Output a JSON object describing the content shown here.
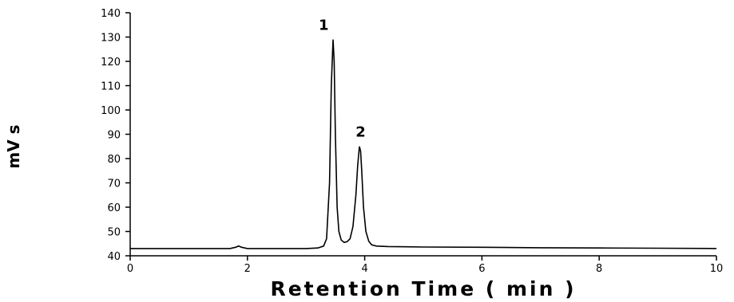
{
  "chart_data": {
    "type": "line",
    "xlabel": "Retention Time ( min )",
    "ylabel": "mV s",
    "xlim": [
      0,
      10
    ],
    "ylim": [
      40,
      140
    ],
    "xticks": [
      0,
      2,
      4,
      6,
      8,
      10
    ],
    "yticks": [
      40,
      50,
      60,
      70,
      80,
      90,
      100,
      110,
      120,
      130,
      140
    ],
    "grid": false,
    "series": [
      {
        "x": [
          0,
          0.5,
          1.0,
          1.5,
          1.7,
          1.8,
          1.85,
          1.9,
          2.0,
          2.5,
          3.0,
          3.2,
          3.3,
          3.35,
          3.4,
          3.43,
          3.46,
          3.48,
          3.5,
          3.53,
          3.56,
          3.6,
          3.65,
          3.7,
          3.75,
          3.8,
          3.85,
          3.88,
          3.91,
          3.93,
          3.95,
          3.98,
          4.02,
          4.07,
          4.12,
          4.2,
          4.4,
          5,
          6,
          7,
          8,
          9,
          10
        ],
        "y": [
          43,
          43,
          43,
          43,
          43,
          43.5,
          44,
          43.5,
          43,
          43,
          43,
          43.2,
          44,
          47,
          70,
          110,
          129,
          120,
          90,
          60,
          50,
          46.5,
          45.5,
          45.8,
          47,
          52,
          65,
          77,
          85,
          83,
          75,
          60,
          50,
          46,
          44.5,
          44,
          43.8,
          43.6,
          43.5,
          43.3,
          43.2,
          43.1,
          43
        ]
      }
    ],
    "annotations": [
      {
        "text": "1",
        "x": 3.3,
        "y": 133
      },
      {
        "text": "2",
        "x": 3.93,
        "y": 89
      }
    ]
  }
}
